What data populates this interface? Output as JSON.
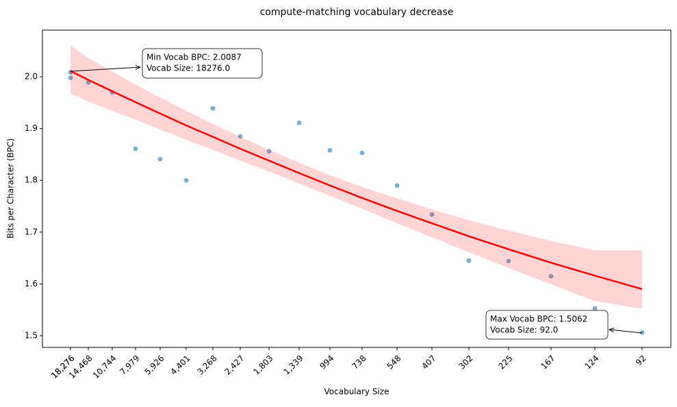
{
  "chart_data": {
    "type": "scatter",
    "title": "compute-matching vocabulary decrease",
    "x_label": "Vocabulary Size",
    "y_label": "Bits per Character (BPC)",
    "x": [
      18276,
      18276,
      14468,
      10744,
      7979,
      5926,
      4401,
      3268,
      2427,
      1803,
      1339,
      994,
      738,
      548,
      407,
      302,
      225,
      167,
      124,
      92
    ],
    "values": [
      2.0087,
      1.998,
      1.989,
      1.97,
      1.861,
      1.841,
      1.8,
      1.939,
      1.885,
      1.856,
      1.911,
      1.858,
      1.853,
      1.79,
      1.734,
      1.645,
      1.644,
      1.615,
      1.553,
      1.5062
    ],
    "color": "#1f77b4",
    "fit": {
      "color": "#ff0000",
      "x": [
        18276,
        14468,
        10744,
        7979,
        5926,
        4401,
        3268,
        2427,
        1803,
        1339,
        994,
        738,
        548,
        407,
        302,
        225,
        167,
        124,
        92
      ],
      "values": [
        2.011,
        1.994,
        1.972,
        1.951,
        1.929,
        1.906,
        1.884,
        1.861,
        1.838,
        1.814,
        1.79,
        1.766,
        1.741,
        1.717,
        1.692,
        1.667,
        1.641,
        1.616,
        1.59
      ],
      "lower": [
        1.968,
        1.952,
        1.934,
        1.917,
        1.898,
        1.878,
        1.859,
        1.838,
        1.817,
        1.794,
        1.77,
        1.745,
        1.717,
        1.69,
        1.661,
        1.631,
        1.599,
        1.567,
        1.552
      ],
      "upper": [
        2.06,
        2.036,
        2.01,
        1.985,
        1.96,
        1.934,
        1.909,
        1.884,
        1.859,
        1.834,
        1.81,
        1.787,
        1.765,
        1.744,
        1.723,
        1.703,
        1.683,
        1.665,
        1.665
      ]
    },
    "xticks": [
      {
        "value": 18276,
        "label": "18,276"
      },
      {
        "value": 18276,
        "label": "18,276"
      },
      {
        "value": 14468,
        "label": "14,468"
      },
      {
        "value": 10744,
        "label": "10,744"
      },
      {
        "value": 7979,
        "label": "7,979"
      },
      {
        "value": 5926,
        "label": "5,926"
      },
      {
        "value": 4401,
        "label": "4,401"
      },
      {
        "value": 3268,
        "label": "3,268"
      },
      {
        "value": 2427,
        "label": "2,427"
      },
      {
        "value": 1803,
        "label": "1,803"
      },
      {
        "value": 1339,
        "label": "1,339"
      },
      994,
      738,
      548,
      407,
      302,
      225,
      167,
      124,
      92
    ],
    "ylim": [
      1.4775,
      2.09
    ],
    "yticks": [
      {
        "value": 1.5,
        "label": "1.5"
      },
      1.6,
      1.7,
      1.8,
      1.9,
      {
        "value": 2.0,
        "label": "2.0"
      }
    ],
    "annotations": [
      {
        "lines": [
          "Min Vocab BPC: 2.0087",
          "Vocab Size: 18276.0"
        ]
      },
      {
        "lines": [
          "Max Vocab BPC: 1.5062",
          "Vocab Size: 92.0"
        ]
      }
    ]
  }
}
